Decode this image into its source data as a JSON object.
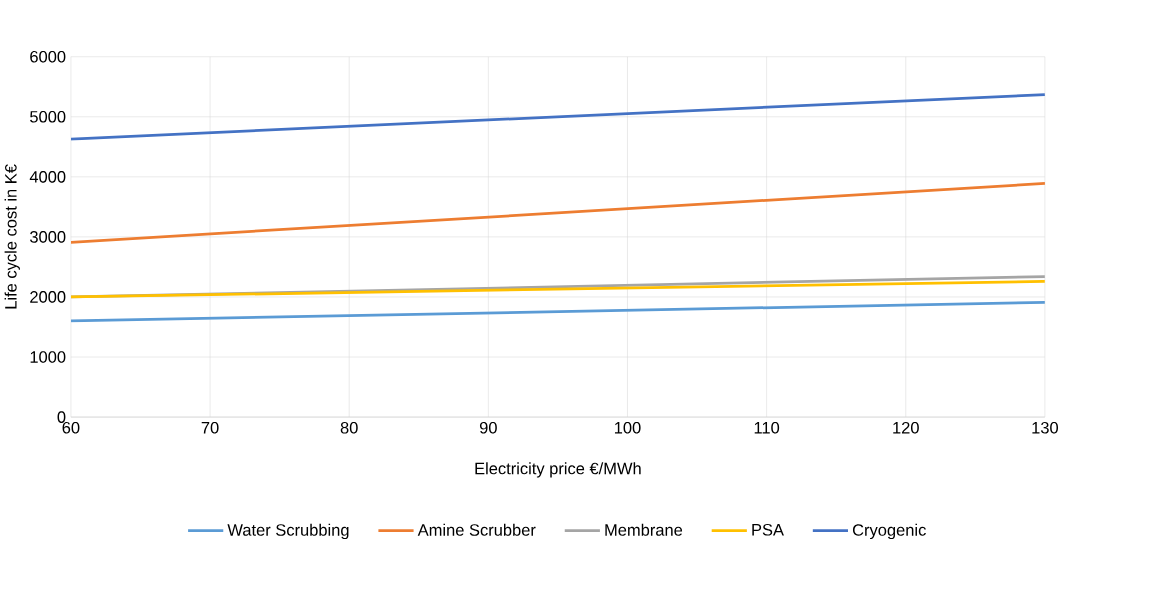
{
  "chart_data": {
    "type": "line",
    "xlabel": "Electricity price €/MWh",
    "ylabel": "Life cycle cost in K€",
    "x": [
      60,
      130
    ],
    "series": [
      {
        "name": "Water Scrubbing",
        "color": "#5b9bd5",
        "values": [
          1600,
          1910
        ]
      },
      {
        "name": "Amine Scrubber",
        "color": "#ed7d31",
        "values": [
          2910,
          3890
        ]
      },
      {
        "name": "Membrane",
        "color": "#a5a5a5",
        "values": [
          2000,
          2340
        ]
      },
      {
        "name": "PSA",
        "color": "#ffc000",
        "values": [
          2000,
          2260
        ]
      },
      {
        "name": "Cryogenic",
        "color": "#4472c4",
        "values": [
          4630,
          5370
        ]
      }
    ],
    "xlim": [
      60,
      130
    ],
    "xticks": [
      60,
      70,
      80,
      90,
      100,
      110,
      120,
      130
    ],
    "ylim": [
      0,
      6000
    ],
    "yticks": [
      0,
      1000,
      2000,
      3000,
      4000,
      5000,
      6000
    ],
    "grid": true,
    "legend": "bottom",
    "marker": "none",
    "line_style": "solid"
  }
}
